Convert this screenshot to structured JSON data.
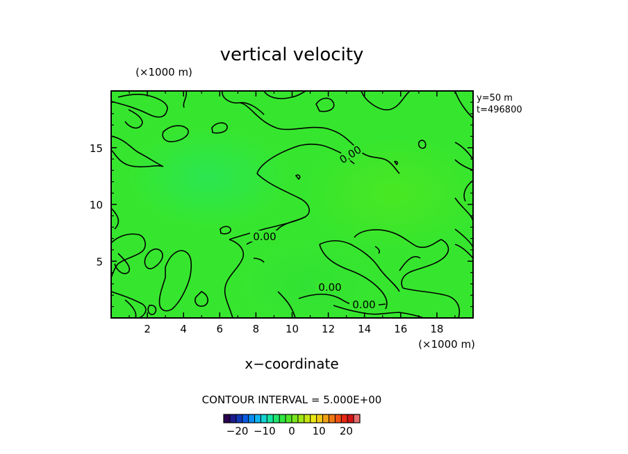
{
  "chart_data": {
    "type": "heatmap",
    "title": "vertical velocity",
    "xlabel": "x−coordinate",
    "x_unit": "(×1000 m)",
    "y_unit": "(×1000 m)",
    "xlim": [
      0,
      20
    ],
    "ylim": [
      0,
      20
    ],
    "x_ticks": [
      "2",
      "4",
      "6",
      "8",
      "10",
      "12",
      "14",
      "16",
      "18"
    ],
    "y_ticks": [
      "5",
      "10",
      "15"
    ],
    "annotations": [
      "y=50  m",
      "t=496800"
    ],
    "contour_labels": [
      "0.00",
      "0.00",
      "0.00",
      "0.00"
    ],
    "contour_interval_text": "CONTOUR INTERVAL = 5.000E+00",
    "colorbar": {
      "range": [
        -25,
        25
      ],
      "tick_labels": [
        "−20",
        "−10",
        "0",
        "10",
        "20"
      ],
      "tick_values": [
        -20,
        -10,
        0,
        10,
        20
      ]
    },
    "field_note_values": {
      "dominant_value": 0,
      "min_visible": -2,
      "max_visible": 2
    }
  }
}
